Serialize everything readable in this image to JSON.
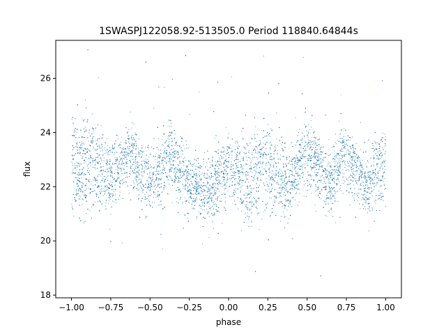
{
  "chart_data": {
    "type": "scatter",
    "title": "1SWASPJ122058.92-513505.0 Period 118840.64844s",
    "xlabel": "phase",
    "ylabel": "flux",
    "xlim": [
      -1.1,
      1.1
    ],
    "ylim": [
      17.9,
      27.4
    ],
    "xticks": [
      -1.0,
      -0.75,
      -0.5,
      -0.25,
      0.0,
      0.25,
      0.5,
      0.75,
      1.0
    ],
    "xtick_labels": [
      "−1.00",
      "−0.75",
      "−0.50",
      "−0.25",
      "0.00",
      "0.25",
      "0.50",
      "0.75",
      "1.00"
    ],
    "yticks": [
      18,
      20,
      22,
      24,
      26
    ],
    "ytick_labels": [
      "18",
      "20",
      "22",
      "24",
      "26"
    ],
    "grid": false,
    "marker_color": "#1f77b4",
    "series": [
      {
        "phase_range": [
          -1.0,
          1.0
        ],
        "profile_phase": [
          -1.0,
          -0.875,
          -0.75,
          -0.625,
          -0.5,
          -0.375,
          -0.25,
          -0.125,
          0.0,
          0.125,
          0.25,
          0.375,
          0.5,
          0.625,
          0.75,
          0.875,
          1.0
        ],
        "profile_flux_upper": [
          23.4,
          23.6,
          22.6,
          23.5,
          22.2,
          23.4,
          22.3,
          22.0,
          23.1,
          22.7,
          23.4,
          22.2,
          23.6,
          22.2,
          23.5,
          22.2,
          23.4
        ],
        "profile_flux_lower": [
          22.2,
          22.1,
          22.1,
          23.0,
          21.9,
          22.8,
          21.9,
          21.7,
          22.3,
          21.4,
          22.3,
          21.9,
          23.0,
          21.9,
          22.9,
          21.9,
          22.2
        ],
        "scatter_sigma": 0.55,
        "n_points": 14000
      }
    ]
  }
}
